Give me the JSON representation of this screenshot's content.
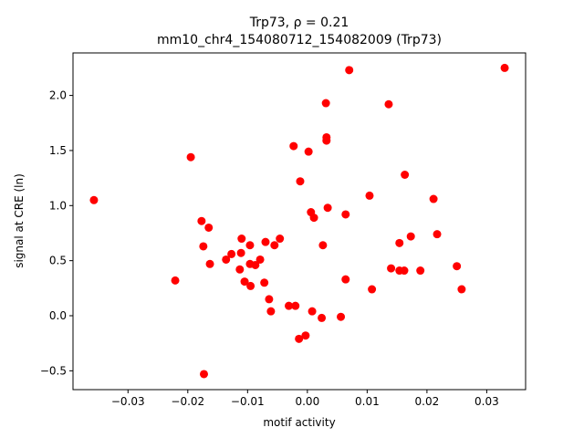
{
  "chart_data": {
    "type": "scatter",
    "title": "Trp73, ρ = 0.21",
    "subtitle": "mm10_chr4_154080712_154082009 (Trp73)",
    "x_label": "motif activity",
    "y_label": "signal at CRE (ln)",
    "color": "#ff0000",
    "x": [
      -0.0357,
      0.033,
      0.007,
      0.0031,
      0.0136,
      -0.0195,
      -0.0023,
      0.0002,
      0.0032,
      0.0032,
      -0.0012,
      0.0163,
      0.0104,
      0.0211,
      0.0006,
      0.0011,
      0.0034,
      0.0064,
      -0.0177,
      -0.0165,
      -0.0174,
      -0.011,
      -0.0096,
      -0.007,
      -0.0046,
      -0.0055,
      0.0026,
      0.0154,
      0.0173,
      0.0217,
      -0.0127,
      -0.0111,
      -0.0136,
      -0.0163,
      -0.0096,
      -0.0087,
      -0.0079,
      -0.0113,
      -0.0221,
      -0.0105,
      -0.0095,
      -0.0072,
      -0.0064,
      -0.0061,
      -0.0031,
      -0.002,
      0.0008,
      0.0024,
      0.0056,
      0.0064,
      0.0108,
      0.014,
      0.0154,
      0.0162,
      0.0189,
      0.025,
      0.0258,
      -0.0014,
      -0.0003,
      -0.0173
    ],
    "values": [
      1.05,
      2.25,
      2.23,
      1.93,
      1.92,
      1.44,
      1.54,
      1.49,
      1.62,
      1.59,
      1.22,
      1.28,
      1.09,
      1.06,
      0.94,
      0.89,
      0.98,
      0.92,
      0.86,
      0.8,
      0.63,
      0.7,
      0.64,
      0.67,
      0.7,
      0.64,
      0.64,
      0.66,
      0.72,
      0.74,
      0.56,
      0.57,
      0.51,
      0.47,
      0.47,
      0.46,
      0.51,
      0.42,
      0.32,
      0.31,
      0.27,
      0.3,
      0.15,
      0.04,
      0.09,
      0.09,
      0.04,
      -0.02,
      -0.01,
      0.33,
      0.24,
      0.43,
      0.41,
      0.41,
      0.41,
      0.45,
      0.24,
      -0.21,
      -0.18,
      -0.53
    ],
    "xlim": [
      -0.0392,
      0.0365
    ],
    "ylim": [
      -0.671,
      2.386
    ],
    "xticks": [
      {
        "value": -0.03,
        "label": "−0.03"
      },
      {
        "value": -0.02,
        "label": "−0.02"
      },
      {
        "value": -0.01,
        "label": "−0.01"
      },
      {
        "value": 0,
        "label": "0.00"
      },
      0.01,
      0.02,
      0.03
    ],
    "yticks": [
      {
        "value": -0.5,
        "label": "−0.5"
      },
      {
        "value": 0,
        "label": "0.0"
      },
      0.5,
      {
        "value": 1,
        "label": "1.0"
      },
      1.5,
      {
        "value": 2,
        "label": "2.0"
      }
    ]
  }
}
